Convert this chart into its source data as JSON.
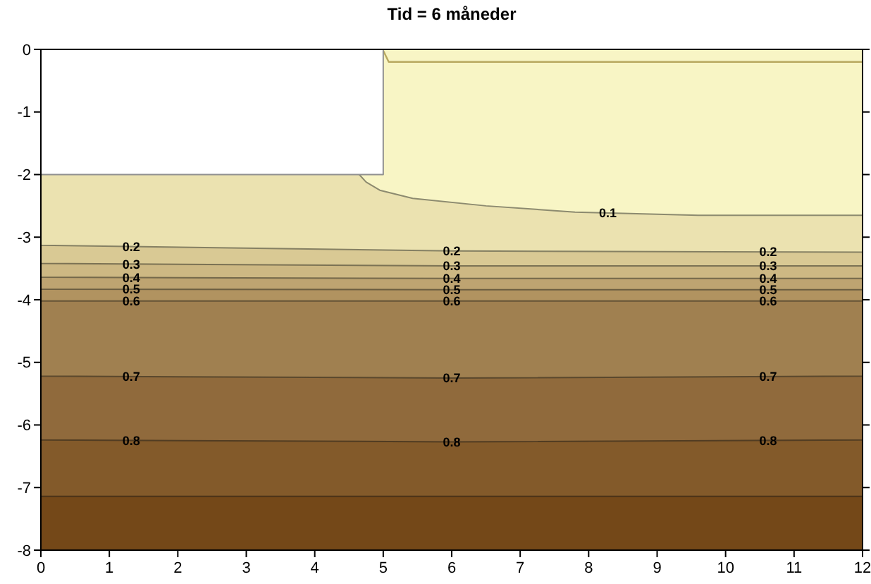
{
  "chart_data": {
    "type": "area",
    "title": "Tid = 6 måneder",
    "xlim": [
      0,
      12
    ],
    "ylim": [
      -8,
      0
    ],
    "xticks": [
      0,
      1,
      2,
      3,
      4,
      5,
      6,
      7,
      8,
      9,
      10,
      11,
      12
    ],
    "yticks": [
      0,
      -1,
      -2,
      -3,
      -4,
      -5,
      -6,
      -7,
      -8
    ],
    "grid": false,
    "series": [
      {
        "color": "#744818",
        "x": [
          0,
          12
        ],
        "values": [
          -8,
          -8
        ]
      },
      {
        "color": "#835a2a",
        "x": [
          0,
          12
        ],
        "values": [
          -7.14,
          -7.14
        ]
      },
      {
        "name": "0.8",
        "color": "#906a3c",
        "x": [
          0,
          6,
          12
        ],
        "values": [
          -6.24,
          -6.27,
          -6.24
        ]
      },
      {
        "name": "0.7",
        "color": "#a08050",
        "x": [
          0,
          6,
          12
        ],
        "values": [
          -5.22,
          -5.25,
          -5.22
        ]
      },
      {
        "name": "0.6",
        "color": "#b19360",
        "x": [
          0,
          6,
          12
        ],
        "values": [
          -4.02,
          -4.02,
          -4.02
        ]
      },
      {
        "name": "0.5",
        "color": "#bea471",
        "x": [
          0,
          6,
          12
        ],
        "values": [
          -3.83,
          -3.84,
          -3.84
        ]
      },
      {
        "name": "0.4",
        "color": "#cdb883",
        "x": [
          0,
          6,
          12
        ],
        "values": [
          -3.64,
          -3.66,
          -3.66
        ]
      },
      {
        "name": "0.3",
        "color": "#d9c994",
        "x": [
          0,
          6,
          12
        ],
        "values": [
          -3.42,
          -3.46,
          -3.46
        ]
      },
      {
        "name": "0.2",
        "color": "#ebe2b0",
        "x": [
          0,
          6,
          12
        ],
        "values": [
          -3.13,
          -3.22,
          -3.24
        ]
      },
      {
        "name": "0.1",
        "color": "#f8f5c5",
        "x": [
          4.65,
          4.75,
          4.95,
          5.43,
          6.5,
          7.8,
          9.6,
          12
        ],
        "values": [
          -2,
          -2.12,
          -2.25,
          -2.38,
          -2.5,
          -2.6,
          -2.65,
          -2.65
        ]
      },
      {
        "type": "line",
        "color": "#b8a860",
        "x": [
          5,
          5.08,
          12
        ],
        "values": [
          -0.02,
          -0.2,
          -0.2
        ]
      },
      {
        "color": "#ffffff",
        "x": [
          0,
          5,
          5,
          12
        ],
        "values": [
          -2,
          -2,
          0,
          0
        ]
      }
    ]
  }
}
